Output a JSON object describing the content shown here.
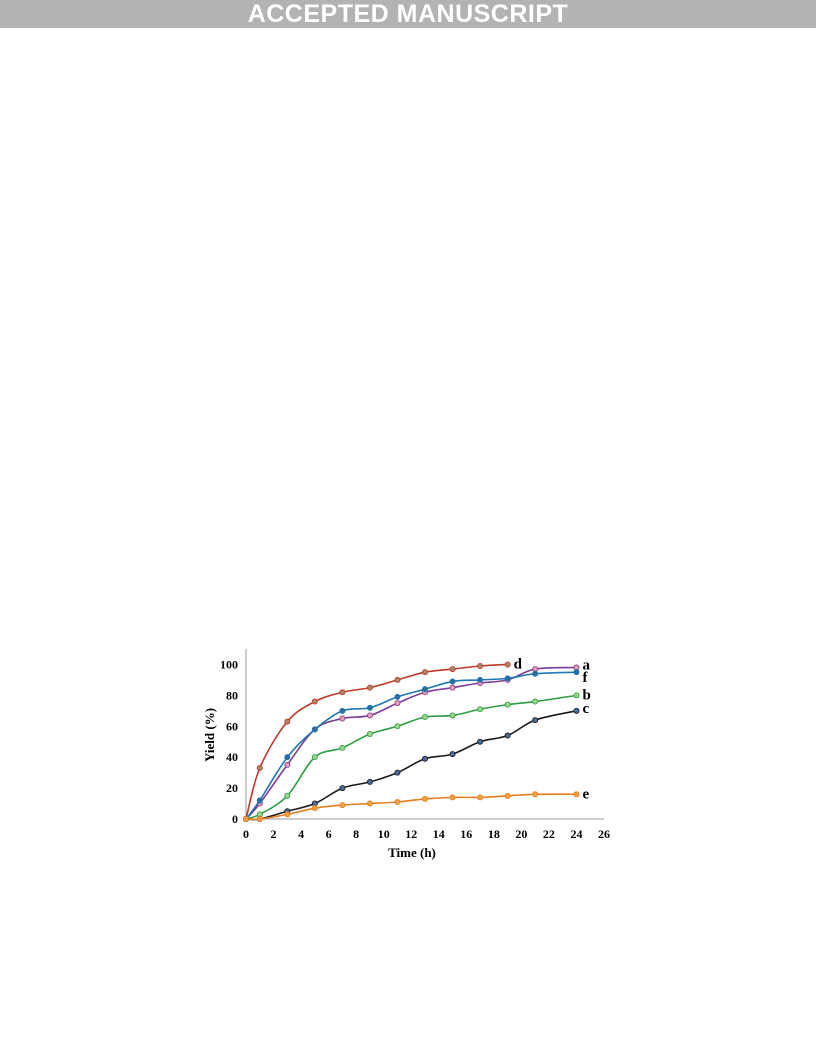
{
  "banner": {
    "label": "ACCEPTED MANUSCRIPT"
  },
  "chart_data": {
    "type": "line",
    "title": "",
    "xlabel": "Time (h)",
    "ylabel": "Yield (%)",
    "xlim": [
      0,
      26
    ],
    "ylim": [
      0,
      110
    ],
    "xticks": [
      0,
      2,
      4,
      6,
      8,
      10,
      12,
      14,
      16,
      18,
      20,
      22,
      24,
      26
    ],
    "yticks": [
      0,
      20,
      40,
      60,
      80,
      100
    ],
    "grid": false,
    "legend": "inline labels at line ends",
    "series": [
      {
        "name": "d",
        "color": "#c0392b",
        "marker": "#a8886a",
        "x": [
          0,
          1,
          3,
          5,
          7,
          9,
          11,
          13,
          15,
          17,
          19
        ],
        "y": [
          0,
          33,
          63,
          76,
          82,
          85,
          90,
          95,
          97,
          99,
          100
        ]
      },
      {
        "name": "a",
        "color": "#7d3c98",
        "marker": "#e89ab0",
        "x": [
          0,
          1,
          3,
          5,
          7,
          9,
          11,
          13,
          15,
          17,
          19,
          21,
          24
        ],
        "y": [
          0,
          10,
          35,
          58,
          65,
          67,
          75,
          82,
          85,
          88,
          90,
          97,
          98
        ]
      },
      {
        "name": "f",
        "color": "#1f77b4",
        "marker": "#2e6b9e",
        "x": [
          0,
          1,
          3,
          5,
          7,
          9,
          11,
          13,
          15,
          17,
          19,
          21,
          24
        ],
        "y": [
          0,
          12,
          40,
          58,
          70,
          72,
          79,
          84,
          89,
          90,
          91,
          94,
          95
        ]
      },
      {
        "name": "b",
        "color": "#2e9e44",
        "marker": "#9bd38a",
        "x": [
          0,
          1,
          3,
          5,
          7,
          9,
          11,
          13,
          15,
          17,
          19,
          21,
          24
        ],
        "y": [
          0,
          3,
          15,
          40,
          46,
          55,
          60,
          66,
          67,
          71,
          74,
          76,
          80
        ]
      },
      {
        "name": "c",
        "color": "#1a1a1a",
        "marker": "#4a6a9a",
        "x": [
          0,
          1,
          3,
          5,
          7,
          9,
          11,
          13,
          15,
          17,
          19,
          21,
          24
        ],
        "y": [
          0,
          0,
          5,
          10,
          20,
          24,
          30,
          39,
          42,
          50,
          54,
          64,
          70
        ]
      },
      {
        "name": "e",
        "color": "#e67e22",
        "marker": "#f0a040",
        "x": [
          0,
          1,
          3,
          5,
          7,
          9,
          11,
          13,
          15,
          17,
          19,
          21,
          24
        ],
        "y": [
          0,
          0,
          3,
          7,
          9,
          10,
          11,
          13,
          14,
          14,
          15,
          16,
          16
        ]
      }
    ]
  }
}
